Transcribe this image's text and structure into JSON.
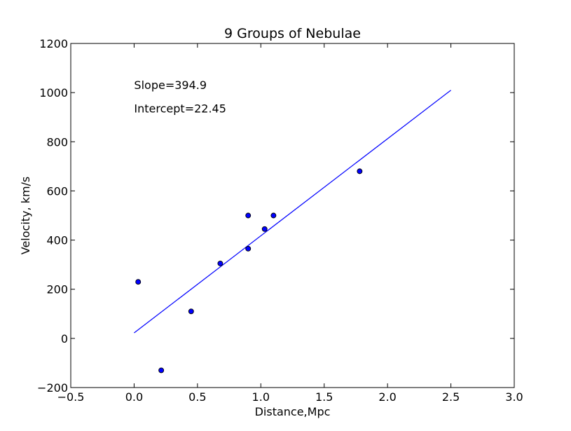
{
  "chart_data": {
    "type": "scatter",
    "title": "9 Groups of Nebulae",
    "xlabel": "Distance,Mpc",
    "ylabel": "Velocity, km/s",
    "xlim": [
      -0.5,
      3.0
    ],
    "ylim": [
      -200,
      1200
    ],
    "xticks": [
      -0.5,
      0.0,
      0.5,
      1.0,
      1.5,
      2.0,
      2.5,
      3.0
    ],
    "xtick_labels": [
      "−0.5",
      "0.0",
      "0.5",
      "1.0",
      "1.5",
      "2.0",
      "2.5",
      "3.0"
    ],
    "yticks": [
      -200,
      0,
      200,
      400,
      600,
      800,
      1000,
      1200
    ],
    "ytick_labels": [
      "−200",
      "0",
      "200",
      "400",
      "600",
      "800",
      "1000",
      "1200"
    ],
    "grid": false,
    "series": [
      {
        "kind": "scatter",
        "color": "#0000ff",
        "x": [
          0.032,
          0.214,
          0.45,
          0.68,
          0.9,
          0.9,
          1.03,
          1.1,
          1.78
        ],
        "y": [
          230,
          -130,
          110,
          305,
          365,
          500,
          445,
          500,
          680
        ]
      },
      {
        "kind": "line",
        "color": "#0000ff",
        "x": [
          0.0,
          2.5
        ],
        "y": [
          22.45,
          1009.7
        ]
      }
    ],
    "annotations": [
      "Slope=394.9",
      "Intercept=22.45"
    ]
  }
}
